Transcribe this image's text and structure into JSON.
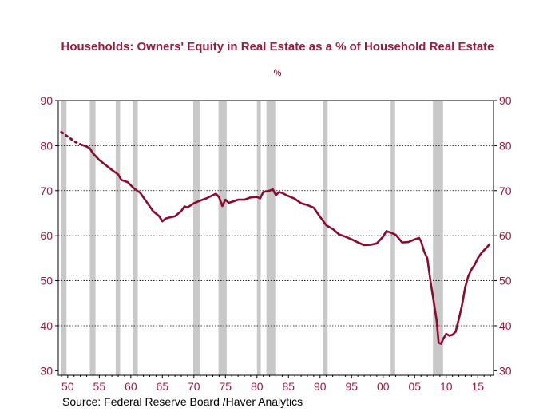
{
  "chart_data": {
    "type": "line",
    "title": "Households: Owners' Equity in Real Estate as a % of Household Real Estate",
    "subtitle": "%",
    "source": "Source:  Federal Reserve Board /Haver Analytics",
    "colors": {
      "line": "#8b0a2e",
      "axis_labels": "#9b1a3c",
      "recession": "#c8c8c8",
      "grid": "#000000"
    },
    "xlim": [
      1948.5,
      2017.5
    ],
    "ylim": [
      29,
      90
    ],
    "y_ticks": [
      30,
      40,
      50,
      60,
      70,
      80,
      90
    ],
    "x_ticks": [
      {
        "year": 1950,
        "label": "50"
      },
      {
        "year": 1955,
        "label": "55"
      },
      {
        "year": 1960,
        "label": "60"
      },
      {
        "year": 1965,
        "label": "65"
      },
      {
        "year": 1970,
        "label": "70"
      },
      {
        "year": 1975,
        "label": "75"
      },
      {
        "year": 1980,
        "label": "80"
      },
      {
        "year": 1985,
        "label": "85"
      },
      {
        "year": 1990,
        "label": "90"
      },
      {
        "year": 1995,
        "label": "95"
      },
      {
        "year": 2000,
        "label": "00"
      },
      {
        "year": 2005,
        "label": "05"
      },
      {
        "year": 2010,
        "label": "10"
      },
      {
        "year": 2015,
        "label": "15"
      }
    ],
    "gridlines": "horizontal dotted at 40, 50, 60, 70, 80",
    "recessions": [
      [
        1948.9,
        1949.8
      ],
      [
        1953.5,
        1954.4
      ],
      [
        1957.6,
        1958.3
      ],
      [
        1960.3,
        1961.1
      ],
      [
        1969.9,
        1970.9
      ],
      [
        1973.9,
        1975.2
      ],
      [
        1980.0,
        1980.6
      ],
      [
        1981.5,
        1982.9
      ],
      [
        1990.5,
        1991.2
      ],
      [
        2001.2,
        2001.9
      ],
      [
        2007.9,
        2009.5
      ]
    ],
    "series": [
      {
        "dotted_segment": [
          [
            1949.0,
            83.0
          ],
          [
            1949.5,
            82.5
          ],
          [
            1950.0,
            82.0
          ],
          [
            1950.5,
            81.5
          ],
          [
            1951.0,
            81.0
          ],
          [
            1952.0,
            80.3
          ]
        ],
        "values": [
          [
            1952.0,
            80.3
          ],
          [
            1953.0,
            79.8
          ],
          [
            1953.5,
            79.4
          ],
          [
            1954.0,
            78.3
          ],
          [
            1955.0,
            76.8
          ],
          [
            1956.0,
            75.7
          ],
          [
            1957.0,
            74.6
          ],
          [
            1958.0,
            73.6
          ],
          [
            1958.5,
            72.4
          ],
          [
            1959.5,
            71.9
          ],
          [
            1960.5,
            70.5
          ],
          [
            1961.5,
            69.5
          ],
          [
            1962.5,
            67.5
          ],
          [
            1963.5,
            65.5
          ],
          [
            1964.5,
            64.3
          ],
          [
            1965.0,
            63.2
          ],
          [
            1965.5,
            63.8
          ],
          [
            1966.0,
            64.0
          ],
          [
            1967.0,
            64.3
          ],
          [
            1968.0,
            65.5
          ],
          [
            1968.5,
            66.5
          ],
          [
            1969.0,
            66.3
          ],
          [
            1970.0,
            67.2
          ],
          [
            1971.0,
            67.8
          ],
          [
            1972.0,
            68.3
          ],
          [
            1973.0,
            69.0
          ],
          [
            1973.5,
            69.3
          ],
          [
            1974.0,
            68.5
          ],
          [
            1974.5,
            66.6
          ],
          [
            1975.0,
            68.0
          ],
          [
            1975.5,
            67.3
          ],
          [
            1976.0,
            67.5
          ],
          [
            1977.0,
            68.0
          ],
          [
            1978.0,
            68.0
          ],
          [
            1979.0,
            68.5
          ],
          [
            1980.0,
            68.6
          ],
          [
            1980.5,
            68.3
          ],
          [
            1981.0,
            69.7
          ],
          [
            1982.0,
            70.0
          ],
          [
            1982.5,
            70.3
          ],
          [
            1983.0,
            69.0
          ],
          [
            1983.5,
            69.7
          ],
          [
            1984.0,
            69.5
          ],
          [
            1985.0,
            68.8
          ],
          [
            1986.0,
            68.2
          ],
          [
            1987.0,
            67.2
          ],
          [
            1988.0,
            66.8
          ],
          [
            1989.0,
            66.2
          ],
          [
            1990.0,
            64.2
          ],
          [
            1991.0,
            62.3
          ],
          [
            1992.0,
            61.5
          ],
          [
            1993.0,
            60.3
          ],
          [
            1994.0,
            59.8
          ],
          [
            1995.0,
            59.2
          ],
          [
            1996.0,
            58.5
          ],
          [
            1997.0,
            57.9
          ],
          [
            1998.0,
            58.0
          ],
          [
            1999.0,
            58.3
          ],
          [
            2000.0,
            59.8
          ],
          [
            2000.5,
            61.0
          ],
          [
            2001.0,
            60.8
          ],
          [
            2002.0,
            60.2
          ],
          [
            2003.0,
            58.5
          ],
          [
            2004.0,
            58.6
          ],
          [
            2005.0,
            59.2
          ],
          [
            2005.7,
            59.5
          ],
          [
            2006.0,
            58.8
          ],
          [
            2006.5,
            56.5
          ],
          [
            2007.0,
            55.0
          ],
          [
            2007.5,
            50.0
          ],
          [
            2008.0,
            45.5
          ],
          [
            2008.5,
            41.0
          ],
          [
            2008.8,
            36.2
          ],
          [
            2009.2,
            36.0
          ],
          [
            2009.5,
            37.0
          ],
          [
            2010.0,
            38.2
          ],
          [
            2010.5,
            37.8
          ],
          [
            2011.0,
            38.0
          ],
          [
            2011.5,
            38.7
          ],
          [
            2012.0,
            41.5
          ],
          [
            2012.5,
            44.5
          ],
          [
            2013.0,
            48.5
          ],
          [
            2013.5,
            51.0
          ],
          [
            2014.0,
            52.5
          ],
          [
            2014.5,
            53.5
          ],
          [
            2015.0,
            55.0
          ],
          [
            2015.5,
            56.0
          ],
          [
            2016.0,
            56.8
          ],
          [
            2016.5,
            57.5
          ],
          [
            2016.9,
            58.2
          ]
        ]
      }
    ]
  }
}
